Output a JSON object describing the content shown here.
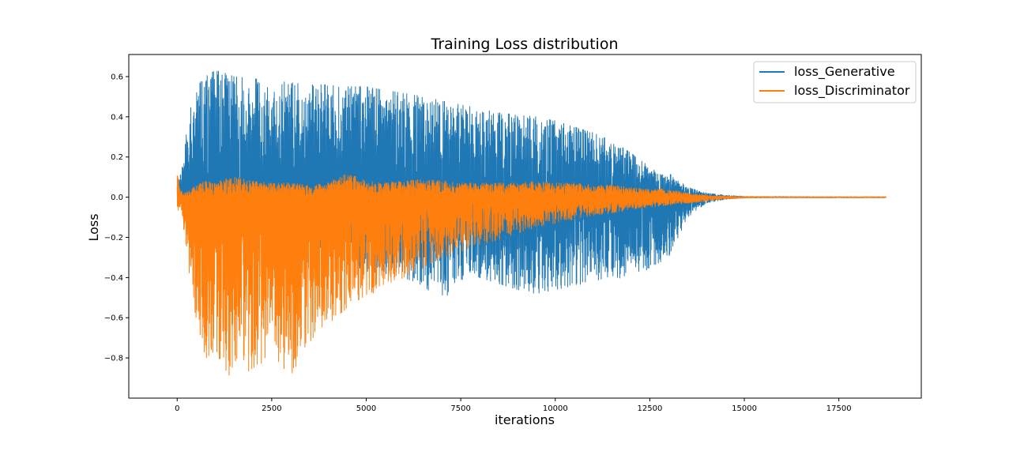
{
  "chart_data": {
    "type": "line",
    "title": "Training Loss distribution",
    "xlabel": "iterations",
    "ylabel": "Loss",
    "xlim": [
      -1280,
      19680
    ],
    "ylim": [
      -1.0,
      0.71
    ],
    "x_ticks": [
      0,
      2500,
      5000,
      7500,
      10000,
      12500,
      15000,
      17500
    ],
    "x_tick_labels": [
      "0",
      "2500",
      "5000",
      "7500",
      "10000",
      "12500",
      "15000",
      "17500"
    ],
    "y_ticks": [
      -0.8,
      -0.6,
      -0.4,
      -0.2,
      0.0,
      0.2,
      0.4,
      0.6
    ],
    "y_tick_labels": [
      "−0.8",
      "−0.6",
      "−0.4",
      "−0.2",
      "0.0",
      "0.2",
      "0.4",
      "0.6"
    ],
    "grid": false,
    "legend_position": "top-right",
    "n_iterations": 18750,
    "series": [
      {
        "name": "loss_Generative",
        "color": "#1f77b4",
        "envelope": {
          "x": [
            0,
            100,
            200,
            300,
            400,
            500,
            750,
            1000,
            1250,
            1500,
            2000,
            2500,
            3000,
            3500,
            4000,
            4500,
            5000,
            5500,
            6000,
            6500,
            7000,
            7500,
            8000,
            8500,
            9000,
            9500,
            10000,
            10500,
            11000,
            11500,
            12000,
            12500,
            13000,
            13500,
            14000,
            14500,
            15000,
            15500,
            16000,
            17000,
            18000,
            18750
          ],
          "upper": [
            0.07,
            0.12,
            0.25,
            0.4,
            0.5,
            0.55,
            0.6,
            0.63,
            0.62,
            0.6,
            0.59,
            0.58,
            0.57,
            0.56,
            0.56,
            0.55,
            0.55,
            0.53,
            0.52,
            0.5,
            0.48,
            0.46,
            0.44,
            0.42,
            0.41,
            0.4,
            0.38,
            0.35,
            0.32,
            0.28,
            0.22,
            0.15,
            0.12,
            0.05,
            0.02,
            0.01,
            0.004,
            0.003,
            0.003,
            0.002,
            0.002,
            0.002
          ],
          "lower": [
            0.0,
            0.0,
            0.0,
            -0.02,
            -0.03,
            -0.05,
            -0.08,
            -0.1,
            -0.12,
            -0.14,
            -0.17,
            -0.2,
            -0.23,
            -0.25,
            -0.28,
            -0.32,
            -0.37,
            -0.38,
            -0.4,
            -0.44,
            -0.52,
            -0.41,
            -0.4,
            -0.43,
            -0.46,
            -0.48,
            -0.46,
            -0.44,
            -0.42,
            -0.39,
            -0.42,
            -0.35,
            -0.3,
            -0.1,
            -0.03,
            -0.01,
            -0.004,
            -0.003,
            -0.003,
            -0.003,
            -0.003,
            -0.003
          ]
        }
      },
      {
        "name": "loss_Discriminator",
        "color": "#ff7f0e",
        "envelope": {
          "x": [
            0,
            50,
            100,
            200,
            300,
            400,
            500,
            750,
            1000,
            1250,
            1500,
            2000,
            2500,
            3000,
            3500,
            4000,
            4500,
            5000,
            5500,
            6000,
            6500,
            7000,
            7500,
            8000,
            8500,
            9000,
            9500,
            10000,
            10500,
            11000,
            11500,
            12000,
            12500,
            13000,
            13500,
            14000,
            14500,
            15000,
            15500,
            16000,
            17000,
            18000,
            18750
          ],
          "upper": [
            0.17,
            0.05,
            0.03,
            0.02,
            0.03,
            0.05,
            0.06,
            0.08,
            0.07,
            0.09,
            0.1,
            0.08,
            0.07,
            0.07,
            0.06,
            0.07,
            0.12,
            0.08,
            0.07,
            0.08,
            0.09,
            0.08,
            0.07,
            0.07,
            0.07,
            0.07,
            0.08,
            0.07,
            0.07,
            0.06,
            0.06,
            0.05,
            0.04,
            0.04,
            0.02,
            0.01,
            0.005,
            0.003,
            0.003,
            0.002,
            0.002,
            0.002,
            0.002
          ],
          "lower": [
            -0.09,
            -0.05,
            -0.05,
            -0.2,
            -0.35,
            -0.5,
            -0.6,
            -0.8,
            -0.87,
            -0.85,
            -0.92,
            -0.85,
            -0.8,
            -0.89,
            -0.72,
            -0.63,
            -0.55,
            -0.5,
            -0.44,
            -0.4,
            -0.35,
            -0.3,
            -0.27,
            -0.24,
            -0.21,
            -0.18,
            -0.15,
            -0.13,
            -0.11,
            -0.09,
            -0.08,
            -0.06,
            -0.05,
            -0.04,
            -0.03,
            -0.02,
            -0.01,
            -0.004,
            -0.003,
            -0.003,
            -0.003,
            -0.003,
            -0.003
          ]
        }
      }
    ]
  }
}
